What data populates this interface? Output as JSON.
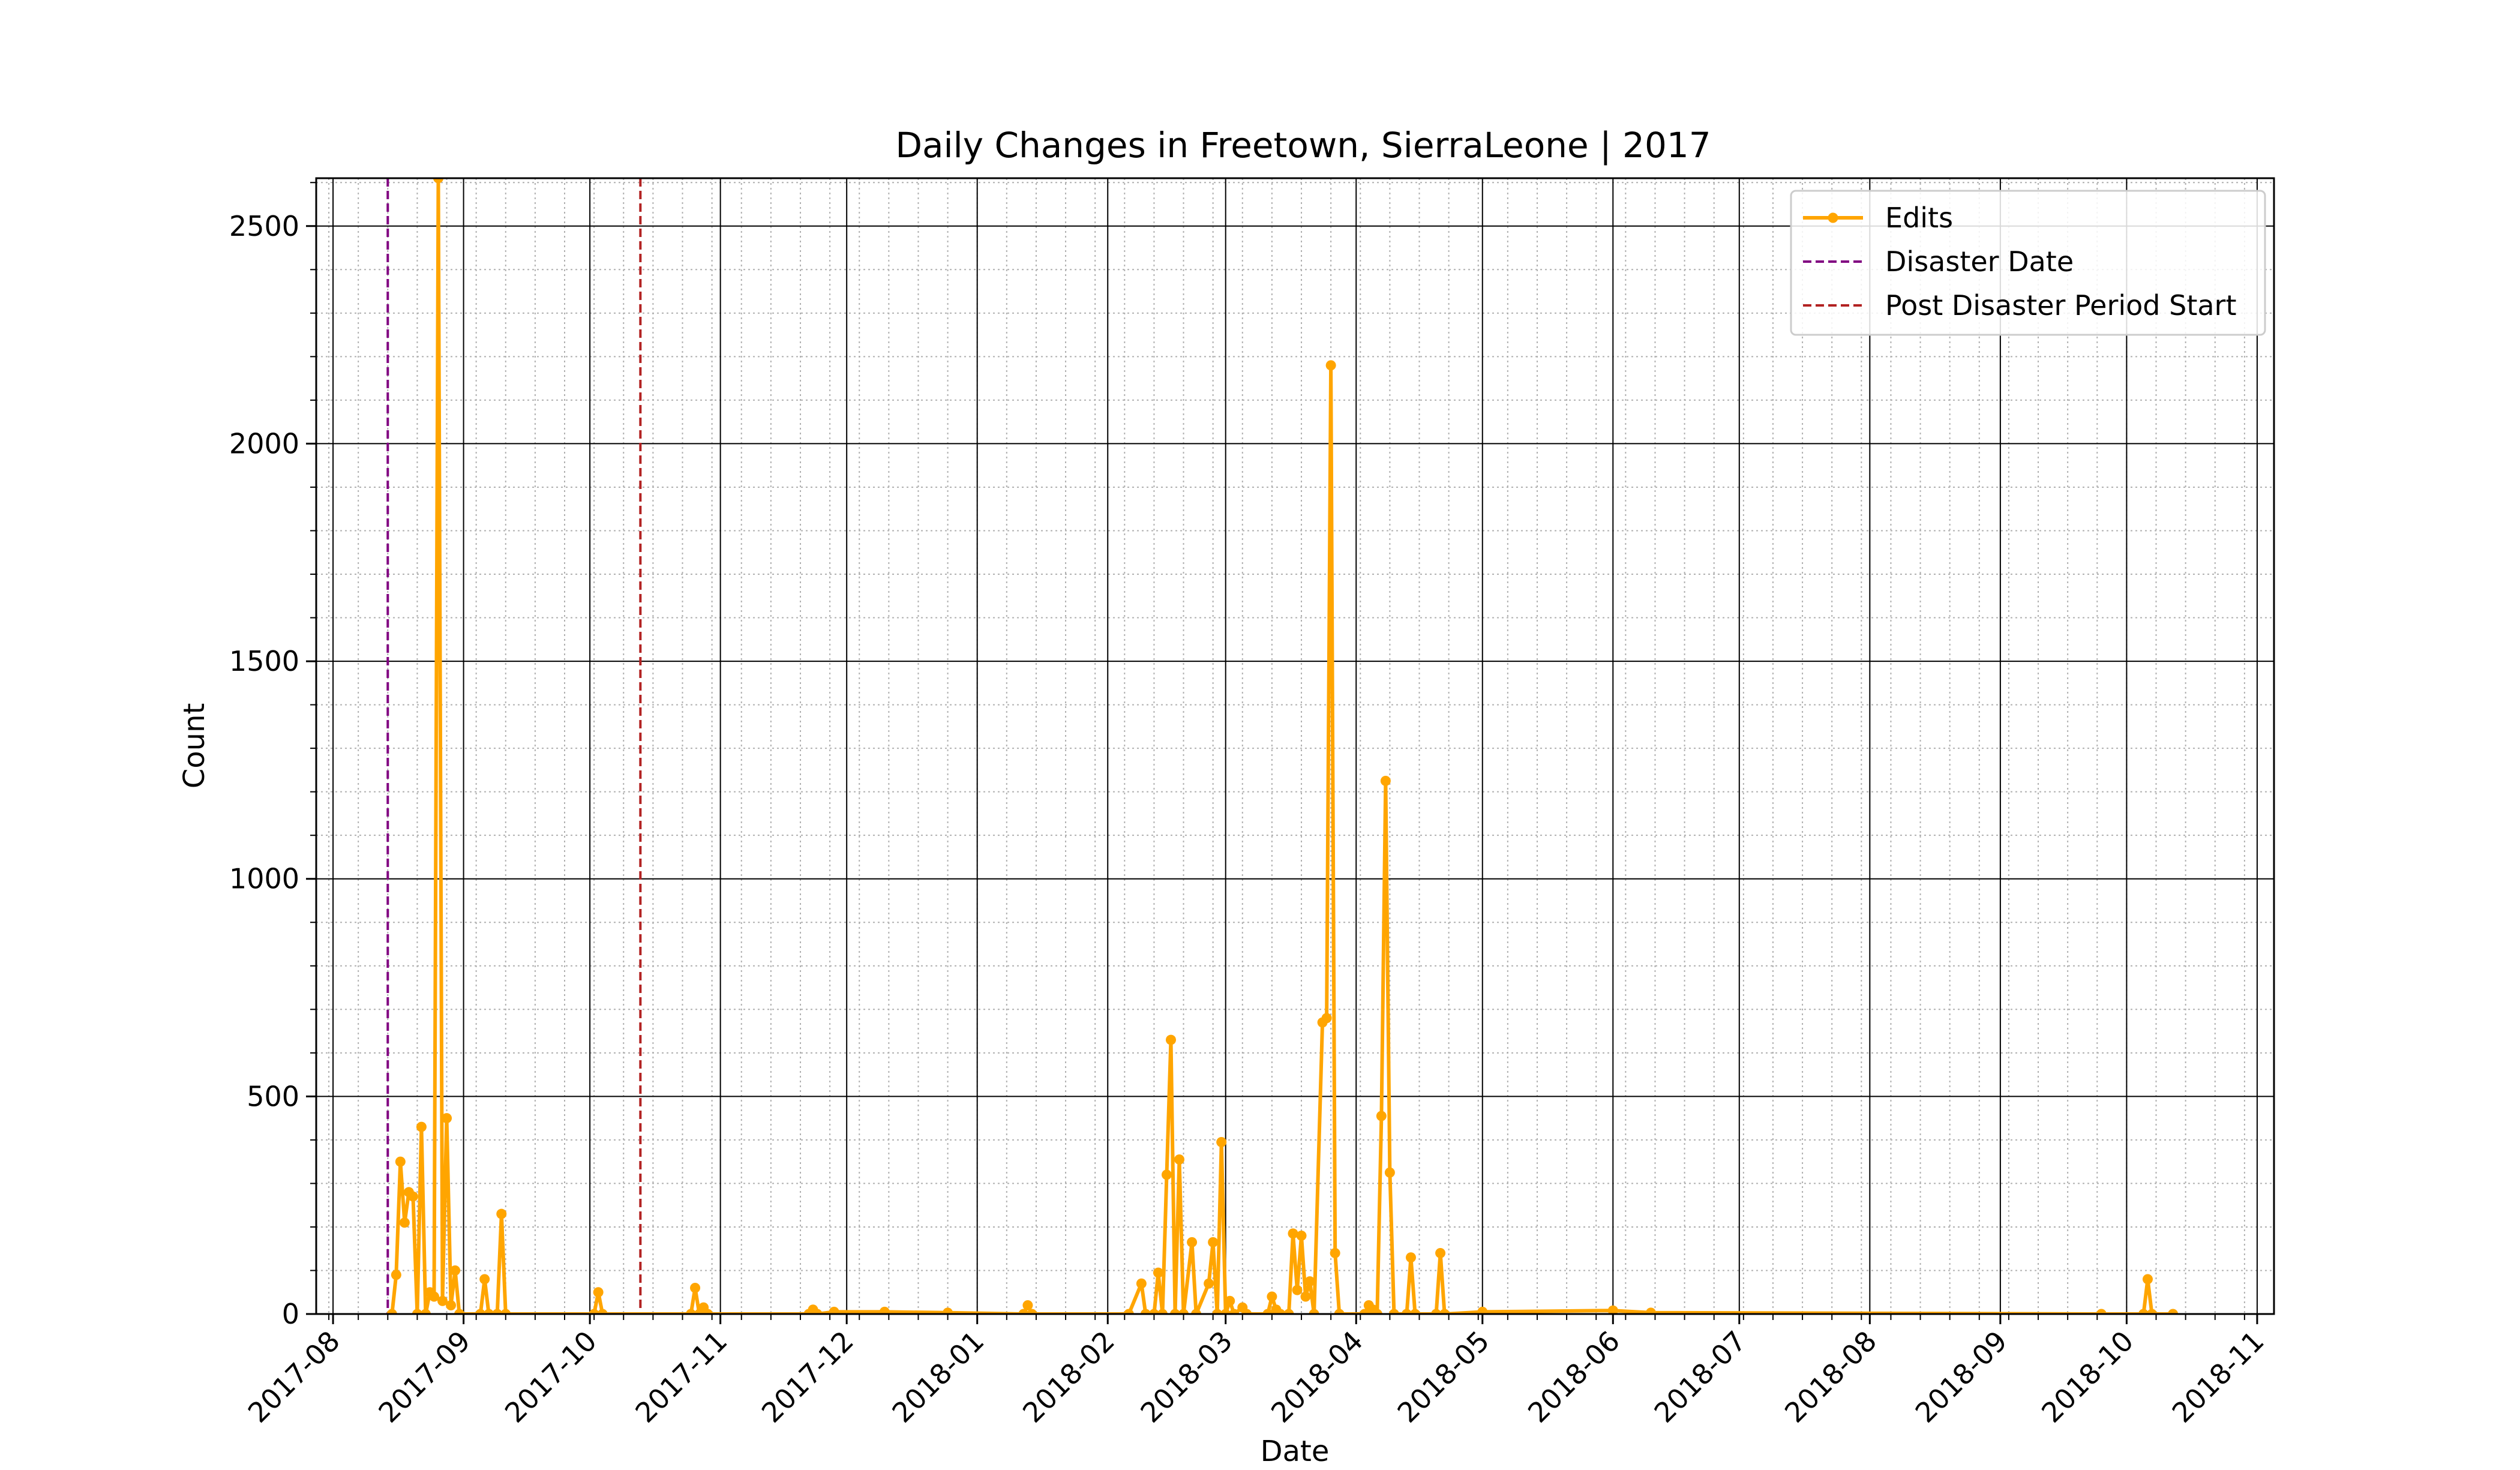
{
  "chart_data": {
    "type": "line",
    "title": "Daily Changes in Freetown, SierraLeone | 2017",
    "xlabel": "Date",
    "ylabel": "Count",
    "xlim": [
      "2017-07-28",
      "2018-11-05"
    ],
    "ylim": [
      0,
      2610
    ],
    "x_ticks": [
      "2017-08-01",
      "2017-09-01",
      "2017-10-01",
      "2017-11-01",
      "2017-12-01",
      "2018-01-01",
      "2018-02-01",
      "2018-03-01",
      "2018-04-01",
      "2018-05-01",
      "2018-06-01",
      "2018-07-01",
      "2018-08-01",
      "2018-09-01",
      "2018-10-01",
      "2018-11-01"
    ],
    "x_tick_labels": [
      "2017-08",
      "2017-09",
      "2017-10",
      "2017-11",
      "2017-12",
      "2018-01",
      "2018-02",
      "2018-03",
      "2018-04",
      "2018-05",
      "2018-06",
      "2018-07",
      "2018-08",
      "2018-09",
      "2018-10",
      "2018-11"
    ],
    "y_ticks": [
      0,
      500,
      1000,
      1500,
      2000,
      2500
    ],
    "y_tick_labels": [
      "0",
      "500",
      "1000",
      "1500",
      "2000",
      "2500"
    ],
    "grid": "major solid, minor dotted",
    "legend_position": "top-right",
    "series": [
      {
        "name": "Edits",
        "color": "#ffa500",
        "marker": "circle",
        "points": [
          {
            "x": "2017-08-15",
            "y": 0
          },
          {
            "x": "2017-08-16",
            "y": 90
          },
          {
            "x": "2017-08-17",
            "y": 350
          },
          {
            "x": "2017-08-18",
            "y": 210
          },
          {
            "x": "2017-08-19",
            "y": 280
          },
          {
            "x": "2017-08-20",
            "y": 270
          },
          {
            "x": "2017-08-21",
            "y": 0
          },
          {
            "x": "2017-08-22",
            "y": 430
          },
          {
            "x": "2017-08-23",
            "y": 0
          },
          {
            "x": "2017-08-24",
            "y": 50
          },
          {
            "x": "2017-08-25",
            "y": 40
          },
          {
            "x": "2017-08-26",
            "y": 2610
          },
          {
            "x": "2017-08-27",
            "y": 30
          },
          {
            "x": "2017-08-28",
            "y": 450
          },
          {
            "x": "2017-08-29",
            "y": 20
          },
          {
            "x": "2017-08-30",
            "y": 100
          },
          {
            "x": "2017-08-31",
            "y": 0
          },
          {
            "x": "2017-09-05",
            "y": 0
          },
          {
            "x": "2017-09-06",
            "y": 80
          },
          {
            "x": "2017-09-07",
            "y": 0
          },
          {
            "x": "2017-09-09",
            "y": 0
          },
          {
            "x": "2017-09-10",
            "y": 230
          },
          {
            "x": "2017-09-11",
            "y": 0
          },
          {
            "x": "2017-10-02",
            "y": 0
          },
          {
            "x": "2017-10-03",
            "y": 50
          },
          {
            "x": "2017-10-04",
            "y": 0
          },
          {
            "x": "2017-10-25",
            "y": 0
          },
          {
            "x": "2017-10-26",
            "y": 60
          },
          {
            "x": "2017-10-27",
            "y": 0
          },
          {
            "x": "2017-10-28",
            "y": 15
          },
          {
            "x": "2017-10-29",
            "y": 0
          },
          {
            "x": "2017-11-22",
            "y": 0
          },
          {
            "x": "2017-11-23",
            "y": 10
          },
          {
            "x": "2017-11-24",
            "y": 0
          },
          {
            "x": "2017-11-28",
            "y": 5
          },
          {
            "x": "2017-12-10",
            "y": 5
          },
          {
            "x": "2017-12-25",
            "y": 3
          },
          {
            "x": "2018-01-12",
            "y": 0
          },
          {
            "x": "2018-01-13",
            "y": 20
          },
          {
            "x": "2018-01-14",
            "y": 0
          },
          {
            "x": "2018-02-06",
            "y": 0
          },
          {
            "x": "2018-02-09",
            "y": 70
          },
          {
            "x": "2018-02-10",
            "y": 0
          },
          {
            "x": "2018-02-12",
            "y": 0
          },
          {
            "x": "2018-02-13",
            "y": 95
          },
          {
            "x": "2018-02-14",
            "y": 0
          },
          {
            "x": "2018-02-15",
            "y": 320
          },
          {
            "x": "2018-02-16",
            "y": 630
          },
          {
            "x": "2018-02-17",
            "y": 0
          },
          {
            "x": "2018-02-18",
            "y": 355
          },
          {
            "x": "2018-02-19",
            "y": 0
          },
          {
            "x": "2018-02-21",
            "y": 165
          },
          {
            "x": "2018-02-22",
            "y": 0
          },
          {
            "x": "2018-02-25",
            "y": 70
          },
          {
            "x": "2018-02-26",
            "y": 165
          },
          {
            "x": "2018-02-27",
            "y": 0
          },
          {
            "x": "2018-02-28",
            "y": 395
          },
          {
            "x": "2018-03-01",
            "y": 0
          },
          {
            "x": "2018-03-02",
            "y": 30
          },
          {
            "x": "2018-03-03",
            "y": 0
          },
          {
            "x": "2018-03-05",
            "y": 15
          },
          {
            "x": "2018-03-06",
            "y": 0
          },
          {
            "x": "2018-03-11",
            "y": 0
          },
          {
            "x": "2018-03-12",
            "y": 40
          },
          {
            "x": "2018-03-13",
            "y": 10
          },
          {
            "x": "2018-03-14",
            "y": 0
          },
          {
            "x": "2018-03-16",
            "y": 0
          },
          {
            "x": "2018-03-17",
            "y": 185
          },
          {
            "x": "2018-03-18",
            "y": 55
          },
          {
            "x": "2018-03-19",
            "y": 180
          },
          {
            "x": "2018-03-20",
            "y": 40
          },
          {
            "x": "2018-03-21",
            "y": 75
          },
          {
            "x": "2018-03-22",
            "y": 0
          },
          {
            "x": "2018-03-24",
            "y": 670
          },
          {
            "x": "2018-03-25",
            "y": 680
          },
          {
            "x": "2018-03-26",
            "y": 2180
          },
          {
            "x": "2018-03-27",
            "y": 140
          },
          {
            "x": "2018-03-28",
            "y": 0
          },
          {
            "x": "2018-04-03",
            "y": 0
          },
          {
            "x": "2018-04-04",
            "y": 20
          },
          {
            "x": "2018-04-05",
            "y": 10
          },
          {
            "x": "2018-04-06",
            "y": 0
          },
          {
            "x": "2018-04-07",
            "y": 455
          },
          {
            "x": "2018-04-08",
            "y": 1225
          },
          {
            "x": "2018-04-09",
            "y": 325
          },
          {
            "x": "2018-04-10",
            "y": 0
          },
          {
            "x": "2018-04-13",
            "y": 0
          },
          {
            "x": "2018-04-14",
            "y": 130
          },
          {
            "x": "2018-04-15",
            "y": 0
          },
          {
            "x": "2018-04-20",
            "y": 0
          },
          {
            "x": "2018-04-21",
            "y": 140
          },
          {
            "x": "2018-04-22",
            "y": 0
          },
          {
            "x": "2018-05-01",
            "y": 5
          },
          {
            "x": "2018-06-01",
            "y": 8
          },
          {
            "x": "2018-06-10",
            "y": 3
          },
          {
            "x": "2018-09-25",
            "y": 0
          },
          {
            "x": "2018-10-05",
            "y": 0
          },
          {
            "x": "2018-10-06",
            "y": 80
          },
          {
            "x": "2018-10-07",
            "y": 0
          },
          {
            "x": "2018-10-12",
            "y": 0
          }
        ]
      }
    ],
    "vlines": [
      {
        "name": "Disaster Date",
        "x": "2017-08-14",
        "color": "#800080",
        "style": "dashed"
      },
      {
        "name": "Post Disaster Period Start",
        "x": "2017-10-13",
        "color": "#b22222",
        "style": "dashed"
      }
    ]
  }
}
